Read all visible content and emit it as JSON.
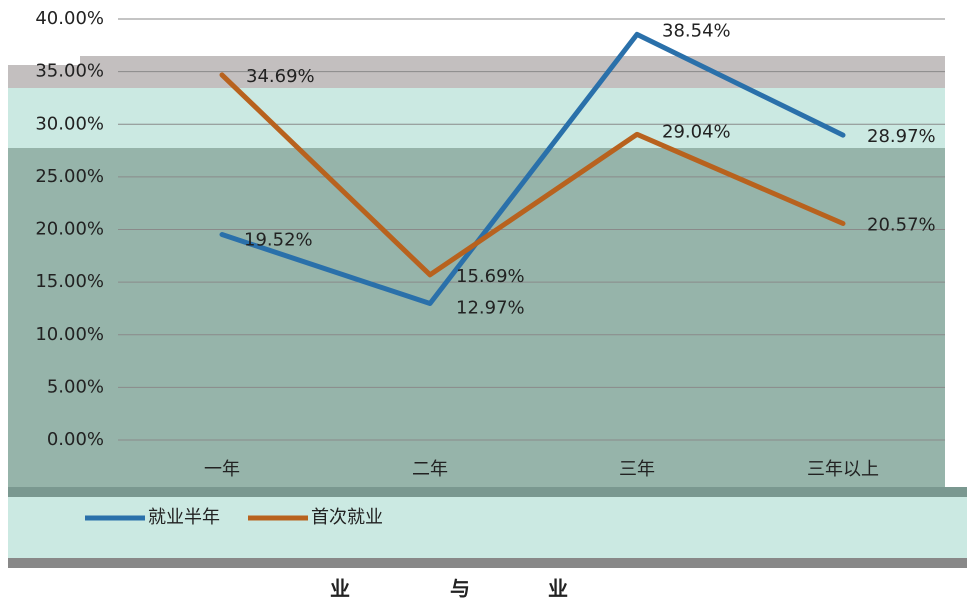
{
  "chart_data": {
    "type": "line",
    "categories": [
      "一年",
      "二年",
      "三年",
      "三年以上"
    ],
    "series": [
      {
        "name": "就业半年",
        "color": "#2a70aa",
        "values": [
          19.52,
          12.97,
          38.54,
          28.97
        ],
        "value_labels": [
          "19.52%",
          "12.97%",
          "38.54%",
          "28.97%"
        ]
      },
      {
        "name": "首次就业",
        "color": "#b8621e",
        "values": [
          34.69,
          15.69,
          29.04,
          20.57
        ],
        "value_labels": [
          "34.69%",
          "15.69%",
          "29.04%",
          "20.57%"
        ]
      }
    ],
    "ylim": [
      0,
      40
    ],
    "yticks": [
      {
        "value": 0,
        "label": "0.00%"
      },
      {
        "value": 5,
        "label": "5.00%"
      },
      {
        "value": 10,
        "label": "10.00%"
      },
      {
        "value": 15,
        "label": "15.00%"
      },
      {
        "value": 20,
        "label": "20.00%"
      },
      {
        "value": 25,
        "label": "25.00%"
      },
      {
        "value": 30,
        "label": "30.00%"
      },
      {
        "value": 35,
        "label": "35.00%"
      },
      {
        "value": 40,
        "label": "40.00%"
      }
    ],
    "grid": true,
    "caption": [
      "业",
      "与",
      "业"
    ]
  }
}
